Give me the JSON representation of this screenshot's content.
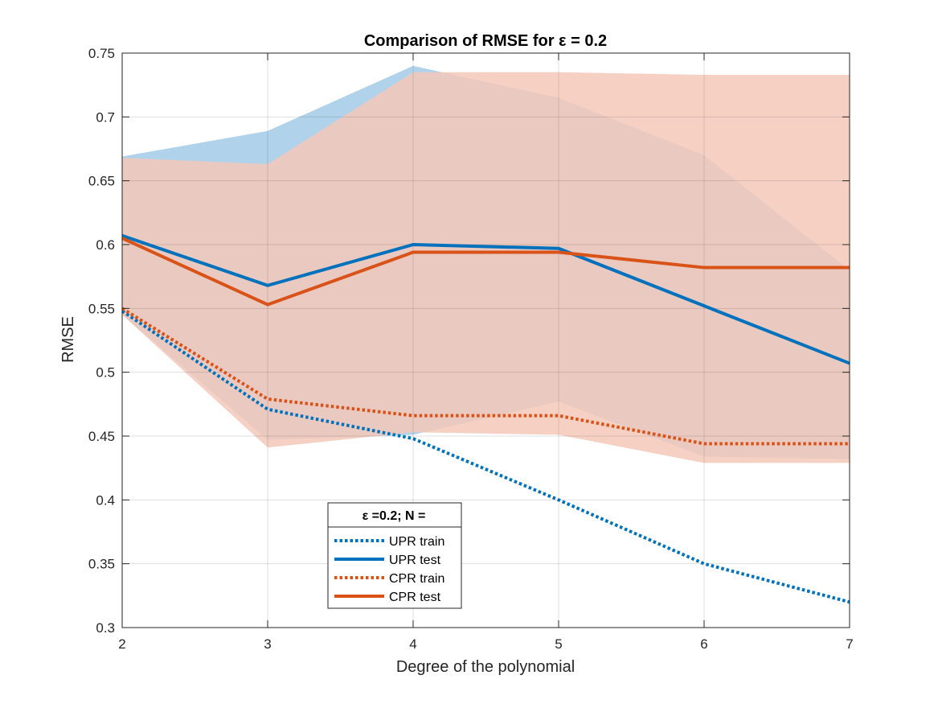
{
  "chart_data": {
    "type": "line",
    "title": "Comparison of RMSE for ε = 0.2",
    "xlabel": "Degree of the polynomial",
    "ylabel": "RMSE",
    "xlim": [
      2,
      7
    ],
    "ylim": [
      0.3,
      0.75
    ],
    "x": [
      2,
      3,
      4,
      5,
      6,
      7
    ],
    "xticks": [
      "2",
      "3",
      "4",
      "5",
      "6",
      "7"
    ],
    "yticks": [
      "0.3",
      "0.35",
      "0.4",
      "0.45",
      "0.5",
      "0.55",
      "0.6",
      "0.65",
      "0.7",
      "0.75"
    ],
    "grid": true,
    "bands": [
      {
        "color": "#b0d2ea",
        "upper": [
          0.669,
          0.689,
          0.74,
          0.715,
          0.67,
          0.58
        ],
        "lower": [
          0.545,
          0.447,
          0.451,
          0.477,
          0.434,
          0.432
        ]
      },
      {
        "color": "#f4c8b9",
        "upper": [
          0.668,
          0.663,
          0.735,
          0.735,
          0.733,
          0.733
        ],
        "lower": [
          0.545,
          0.441,
          0.453,
          0.451,
          0.429,
          0.429
        ]
      }
    ],
    "series": [
      {
        "name": "UPR train",
        "color": "#0072bd",
        "style": "dotted",
        "values": [
          0.548,
          0.471,
          0.448,
          0.4,
          0.35,
          0.32
        ]
      },
      {
        "name": "UPR test",
        "color": "#0072bd",
        "style": "solid",
        "values": [
          0.607,
          0.568,
          0.6,
          0.597,
          0.552,
          0.507
        ]
      },
      {
        "name": "CPR train",
        "color": "#d95319",
        "style": "dotted",
        "values": [
          0.55,
          0.479,
          0.466,
          0.466,
          0.444,
          0.444
        ]
      },
      {
        "name": "CPR test",
        "color": "#d95319",
        "style": "solid",
        "values": [
          0.605,
          0.553,
          0.594,
          0.594,
          0.582,
          0.582
        ]
      }
    ],
    "legend": {
      "title": "ε =0.2; N =",
      "placement": "lower-left"
    }
  }
}
